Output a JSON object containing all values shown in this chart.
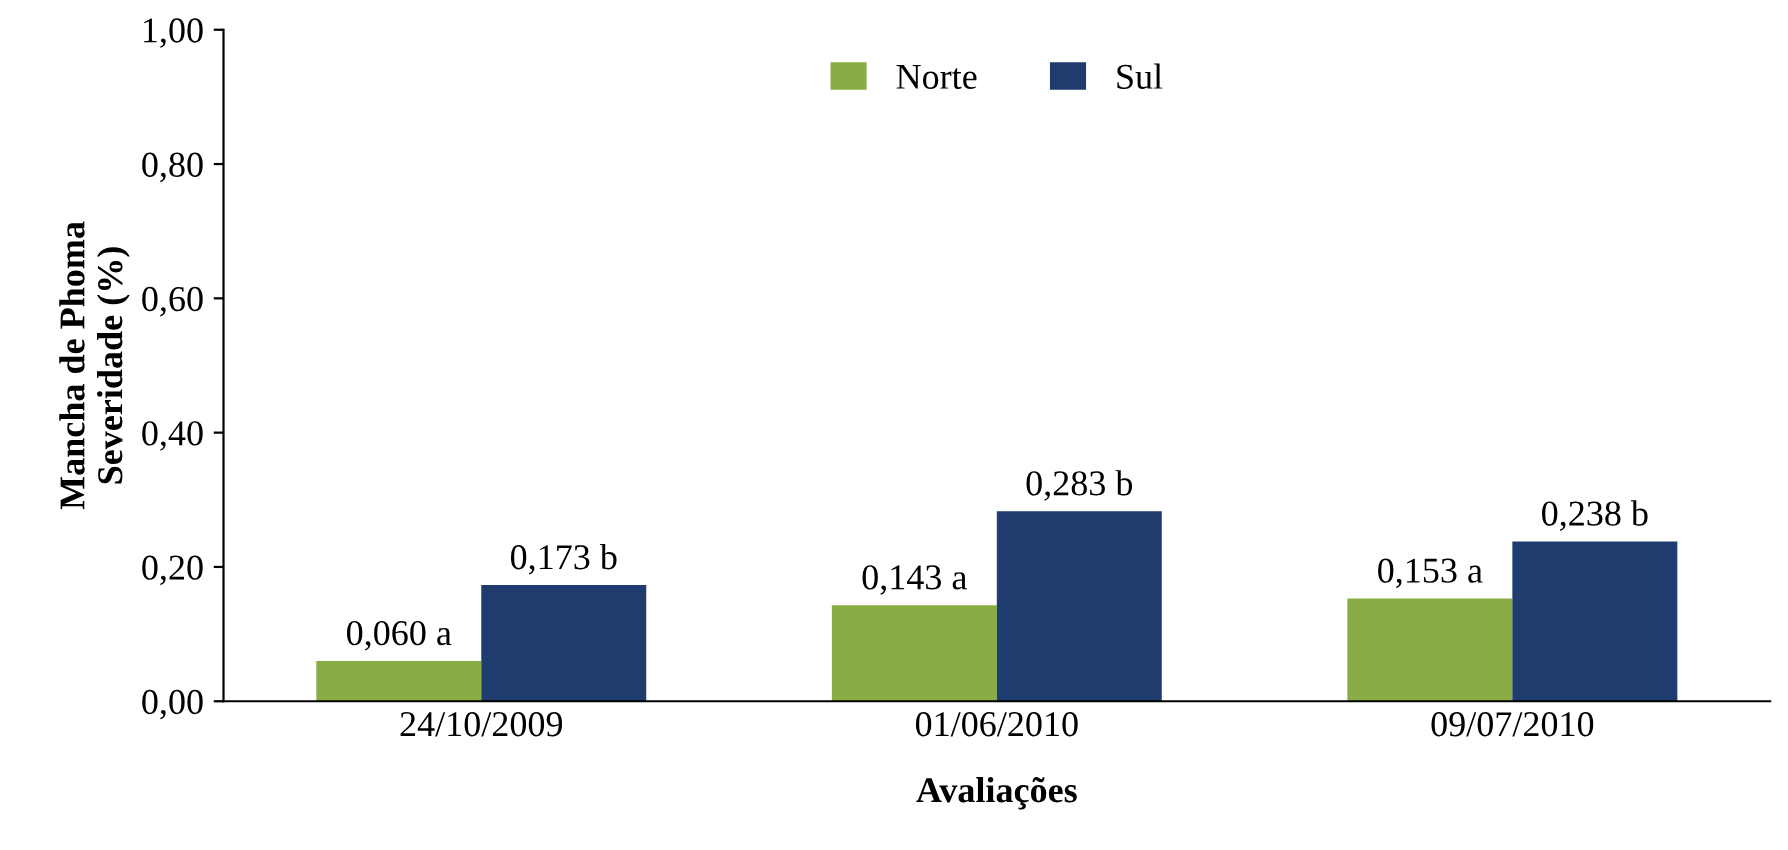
{
  "chart_data": {
    "type": "bar",
    "xlabel": "Avaliações",
    "ylabel": "Mancha de Phoma\nSeveridade (%)",
    "categories": [
      "24/10/2009",
      "01/06/2010",
      "09/07/2010"
    ],
    "series": [
      {
        "name": "Norte",
        "color": "#8aac45",
        "values": [
          0.06,
          0.143,
          0.153
        ],
        "value_labels": [
          "0,060 a",
          "0,143 a",
          "0,153 a"
        ]
      },
      {
        "name": "Sul",
        "color": "#1f3c6e",
        "values": [
          0.173,
          0.283,
          0.238
        ],
        "value_labels": [
          "0,173 b",
          "0,283 b",
          "0,238 b"
        ]
      }
    ],
    "ylim": [
      0,
      1
    ],
    "yticks": [
      {
        "value": 0,
        "label": "0,00"
      },
      {
        "value": 0.2,
        "label": "0,20"
      },
      {
        "value": 0.4,
        "label": "0,40"
      },
      {
        "value": 0.6,
        "label": "0,60"
      },
      {
        "value": 0.8,
        "label": "0,80"
      },
      {
        "value": 1,
        "label": "1,00"
      }
    ],
    "grid": false,
    "legend": "top"
  }
}
